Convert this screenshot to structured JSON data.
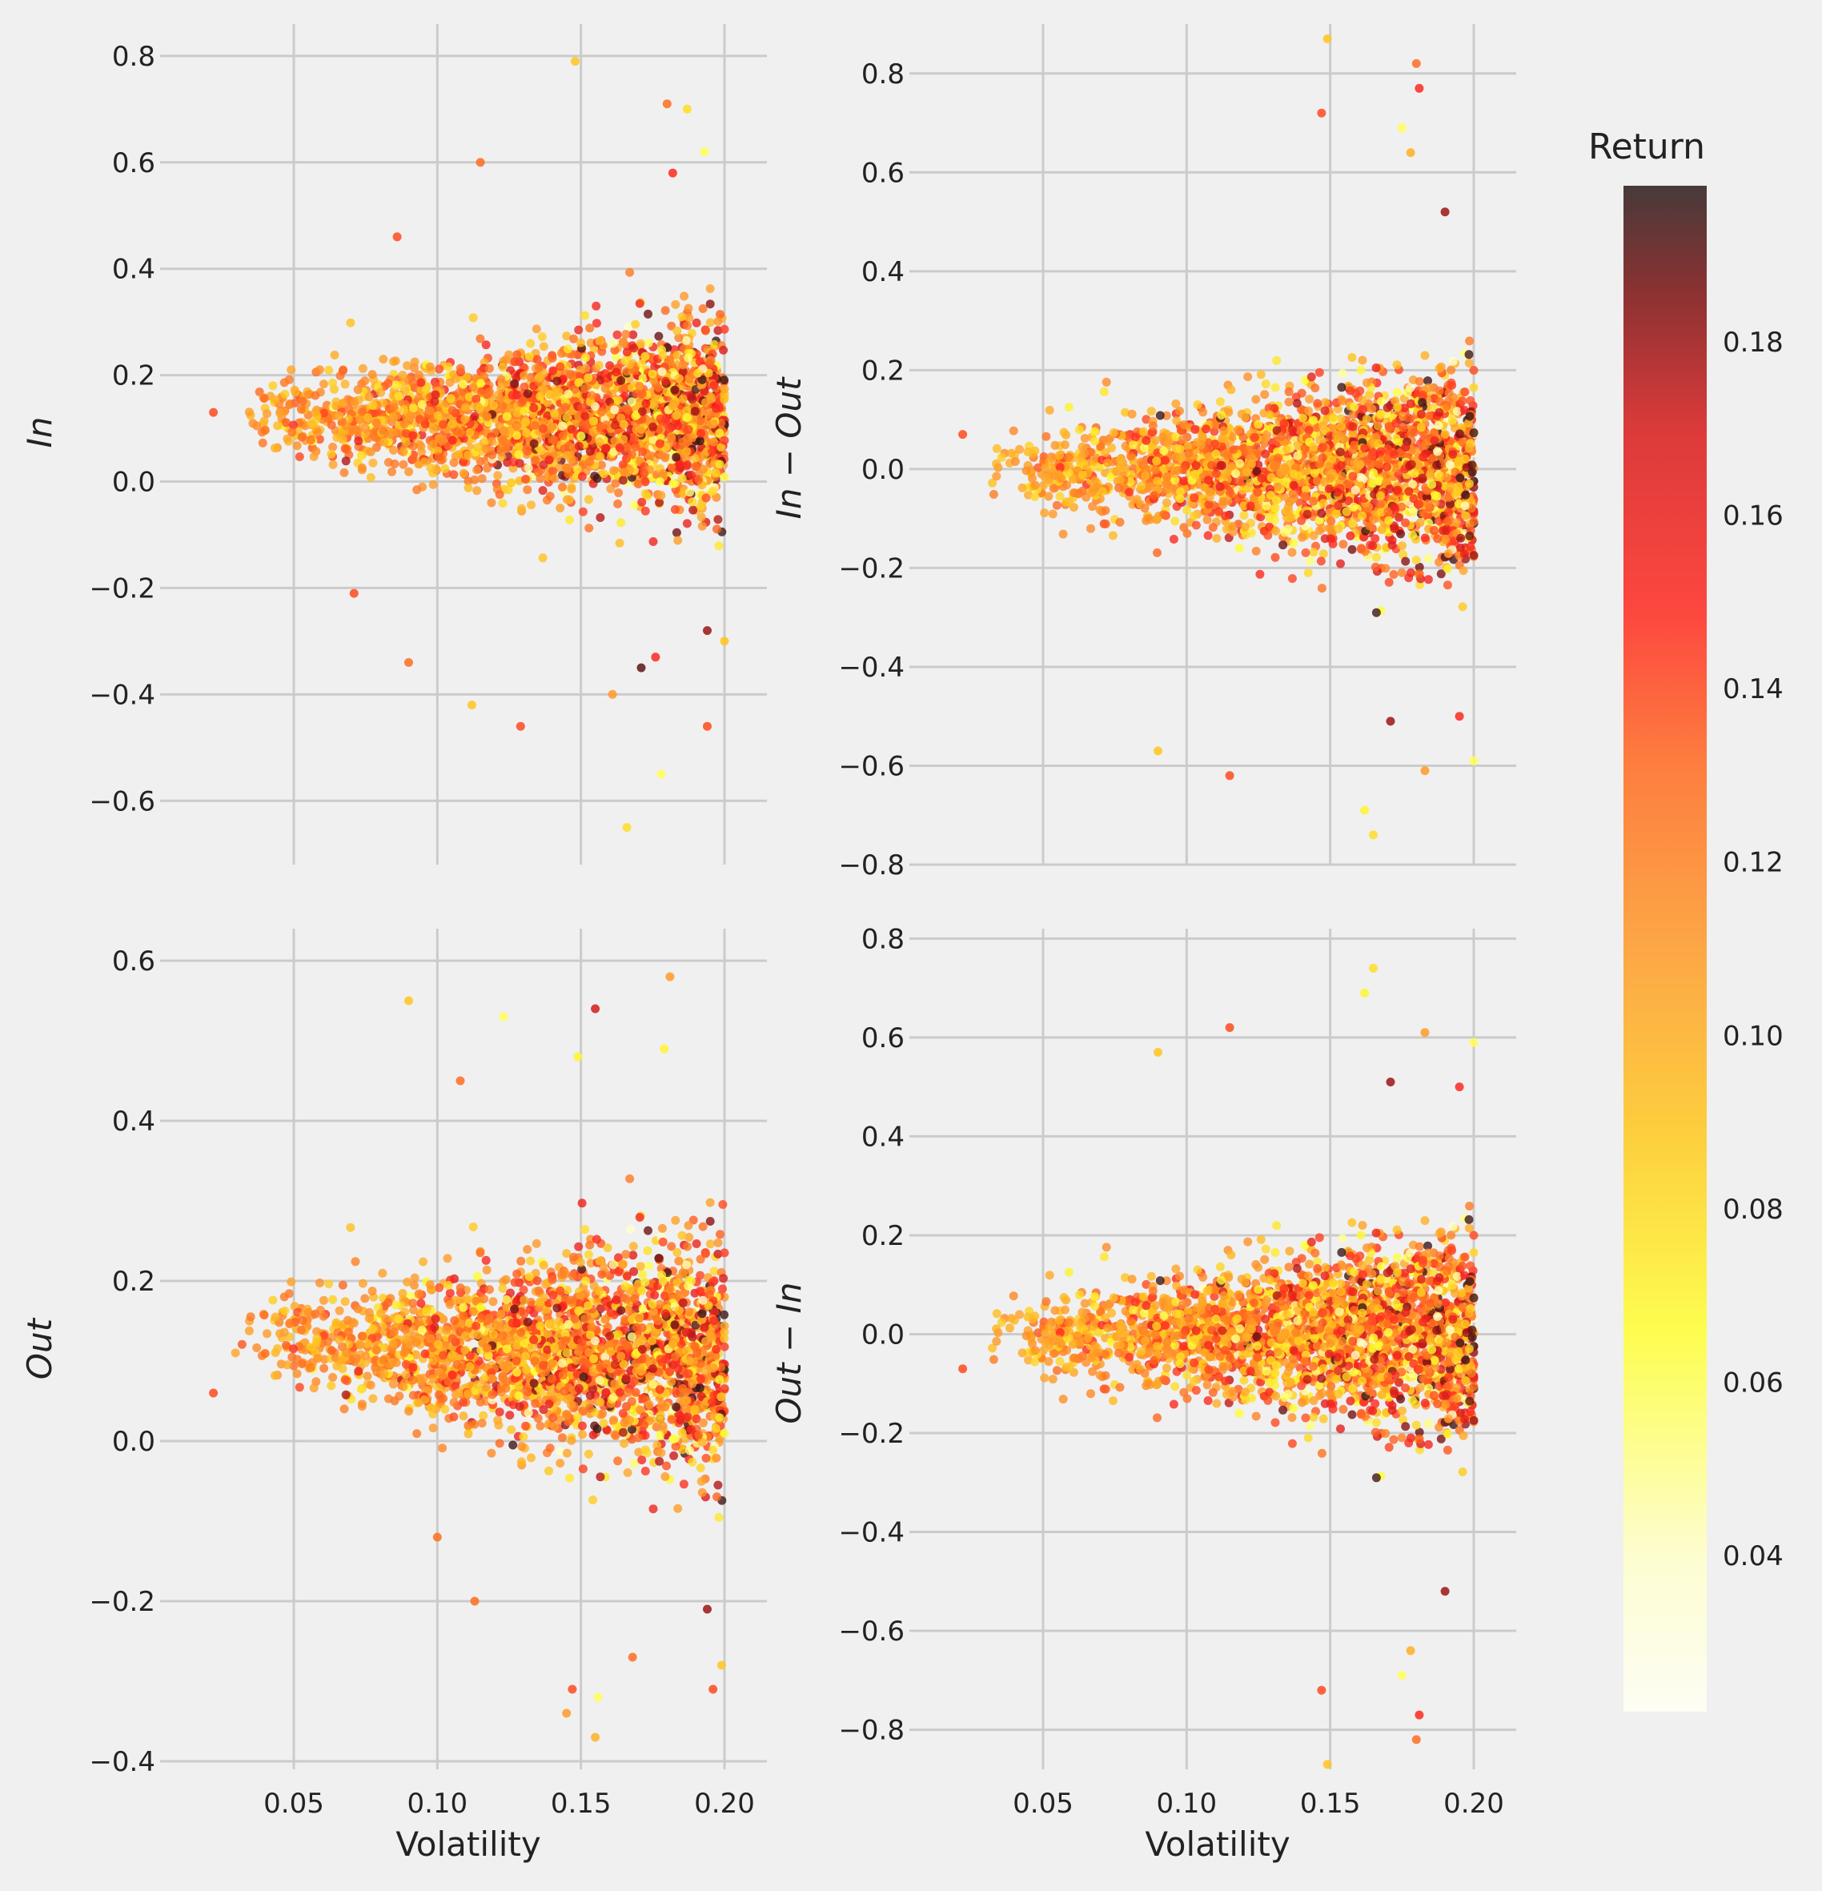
{
  "figure": {
    "colorbar_title": "Return",
    "colorbar_ticks": [
      "0.04",
      "0.06",
      "0.08",
      "0.10",
      "0.12",
      "0.14",
      "0.16",
      "0.18"
    ],
    "colorbar_range": [
      0.022,
      0.198
    ],
    "colormap": "hot_r",
    "background": "#f0f0f0",
    "grid_color": "#cbcbcb"
  },
  "chart_data": [
    {
      "type": "scatter",
      "panel": "top-left",
      "xlabel": "",
      "ylabel": "In",
      "xlim": [
        0.0,
        0.2
      ],
      "ylim": [
        -0.72,
        0.86
      ],
      "x_ticks": [
        "0.05",
        "0.10",
        "0.15",
        "0.20"
      ],
      "y_ticks": [
        "−0.6",
        "−0.4",
        "−0.2",
        "0.0",
        "0.2",
        "0.4",
        "0.6",
        "0.8"
      ],
      "y_tick_values": [
        -0.6,
        -0.4,
        -0.2,
        0.0,
        0.2,
        0.4,
        0.6,
        0.8
      ],
      "show_x_tick_labels": false,
      "cloud": {
        "x_min": 0.03,
        "x_max": 0.2,
        "y_center_at_min": 0.12,
        "y_center_at_max": 0.12,
        "spread_at_min": 0.05,
        "spread_at_max": 0.16
      },
      "points": [
        {
          "x": 0.022,
          "y": 0.13,
          "c": 0.14
        },
        {
          "x": 0.148,
          "y": 0.79,
          "c": 0.09
        },
        {
          "x": 0.18,
          "y": 0.71,
          "c": 0.13
        },
        {
          "x": 0.187,
          "y": 0.7,
          "c": 0.08
        },
        {
          "x": 0.115,
          "y": 0.6,
          "c": 0.13
        },
        {
          "x": 0.193,
          "y": 0.62,
          "c": 0.06
        },
        {
          "x": 0.182,
          "y": 0.58,
          "c": 0.15
        },
        {
          "x": 0.086,
          "y": 0.46,
          "c": 0.14
        },
        {
          "x": 0.112,
          "y": -0.42,
          "c": 0.09
        },
        {
          "x": 0.129,
          "y": -0.46,
          "c": 0.14
        },
        {
          "x": 0.194,
          "y": -0.46,
          "c": 0.14
        },
        {
          "x": 0.178,
          "y": -0.55,
          "c": 0.06
        },
        {
          "x": 0.166,
          "y": -0.65,
          "c": 0.08
        },
        {
          "x": 0.171,
          "y": -0.35,
          "c": 0.19
        },
        {
          "x": 0.194,
          "y": -0.28,
          "c": 0.18
        },
        {
          "x": 0.09,
          "y": -0.34,
          "c": 0.13
        },
        {
          "x": 0.161,
          "y": -0.4,
          "c": 0.11
        },
        {
          "x": 0.176,
          "y": -0.33,
          "c": 0.15
        },
        {
          "x": 0.2,
          "y": -0.3,
          "c": 0.09
        },
        {
          "x": 0.071,
          "y": -0.21,
          "c": 0.14
        }
      ]
    },
    {
      "type": "scatter",
      "panel": "top-right",
      "xlabel": "",
      "ylabel": "In − Out",
      "xlim": [
        0.0,
        0.2
      ],
      "ylim": [
        -0.8,
        0.9
      ],
      "x_ticks": [
        "0.05",
        "0.10",
        "0.15",
        "0.20"
      ],
      "y_ticks": [
        "−0.8",
        "−0.6",
        "−0.4",
        "−0.2",
        "0.0",
        "0.2",
        "0.4",
        "0.6",
        "0.8"
      ],
      "y_tick_values": [
        -0.8,
        -0.6,
        -0.4,
        -0.2,
        0.0,
        0.2,
        0.4,
        0.6,
        0.8
      ],
      "show_x_tick_labels": false,
      "cloud": {
        "x_min": 0.03,
        "x_max": 0.2,
        "y_center_at_min": 0.0,
        "y_center_at_max": 0.0,
        "spread_at_min": 0.06,
        "spread_at_max": 0.18
      },
      "points": [
        {
          "x": 0.022,
          "y": 0.07,
          "c": 0.14
        },
        {
          "x": 0.149,
          "y": 0.87,
          "c": 0.09
        },
        {
          "x": 0.18,
          "y": 0.82,
          "c": 0.13
        },
        {
          "x": 0.181,
          "y": 0.77,
          "c": 0.15
        },
        {
          "x": 0.147,
          "y": 0.72,
          "c": 0.14
        },
        {
          "x": 0.175,
          "y": 0.69,
          "c": 0.06
        },
        {
          "x": 0.178,
          "y": 0.64,
          "c": 0.1
        },
        {
          "x": 0.19,
          "y": 0.52,
          "c": 0.18
        },
        {
          "x": 0.165,
          "y": -0.74,
          "c": 0.08
        },
        {
          "x": 0.162,
          "y": -0.69,
          "c": 0.07
        },
        {
          "x": 0.115,
          "y": -0.62,
          "c": 0.14
        },
        {
          "x": 0.09,
          "y": -0.57,
          "c": 0.09
        },
        {
          "x": 0.2,
          "y": -0.59,
          "c": 0.06
        },
        {
          "x": 0.171,
          "y": -0.51,
          "c": 0.18
        },
        {
          "x": 0.183,
          "y": -0.61,
          "c": 0.11
        },
        {
          "x": 0.195,
          "y": -0.5,
          "c": 0.15
        }
      ]
    },
    {
      "type": "scatter",
      "panel": "bottom-left",
      "xlabel": "Volatility",
      "ylabel": "Out",
      "xlim": [
        0.0,
        0.2
      ],
      "ylim": [
        -0.41,
        0.64
      ],
      "x_ticks": [
        "0.05",
        "0.10",
        "0.15",
        "0.20"
      ],
      "y_ticks": [
        "−0.4",
        "−0.2",
        "0.0",
        "0.2",
        "0.4",
        "0.6"
      ],
      "y_tick_values": [
        -0.4,
        -0.2,
        0.0,
        0.2,
        0.4,
        0.6
      ],
      "show_x_tick_labels": true,
      "cloud": {
        "x_min": 0.03,
        "x_max": 0.2,
        "y_center_at_min": 0.13,
        "y_center_at_max": 0.1,
        "spread_at_min": 0.04,
        "spread_at_max": 0.13
      },
      "points": [
        {
          "x": 0.022,
          "y": 0.06,
          "c": 0.14
        },
        {
          "x": 0.181,
          "y": 0.58,
          "c": 0.11
        },
        {
          "x": 0.09,
          "y": 0.55,
          "c": 0.09
        },
        {
          "x": 0.155,
          "y": 0.54,
          "c": 0.17
        },
        {
          "x": 0.123,
          "y": 0.53,
          "c": 0.06
        },
        {
          "x": 0.149,
          "y": 0.48,
          "c": 0.07
        },
        {
          "x": 0.179,
          "y": 0.49,
          "c": 0.07
        },
        {
          "x": 0.108,
          "y": 0.45,
          "c": 0.13
        },
        {
          "x": 0.155,
          "y": -0.37,
          "c": 0.1
        },
        {
          "x": 0.145,
          "y": -0.34,
          "c": 0.11
        },
        {
          "x": 0.147,
          "y": -0.31,
          "c": 0.14
        },
        {
          "x": 0.156,
          "y": -0.32,
          "c": 0.06
        },
        {
          "x": 0.194,
          "y": -0.21,
          "c": 0.18
        },
        {
          "x": 0.199,
          "y": -0.28,
          "c": 0.09
        },
        {
          "x": 0.196,
          "y": -0.31,
          "c": 0.14
        },
        {
          "x": 0.168,
          "y": -0.27,
          "c": 0.13
        },
        {
          "x": 0.113,
          "y": -0.2,
          "c": 0.13
        },
        {
          "x": 0.1,
          "y": -0.12,
          "c": 0.13
        }
      ]
    },
    {
      "type": "scatter",
      "panel": "bottom-right",
      "xlabel": "Volatility",
      "ylabel": "Out − In",
      "xlim": [
        0.0,
        0.2
      ],
      "ylim": [
        -0.88,
        0.82
      ],
      "x_ticks": [
        "0.05",
        "0.10",
        "0.15",
        "0.20"
      ],
      "y_ticks": [
        "−0.8",
        "−0.6",
        "−0.4",
        "−0.2",
        "0.0",
        "0.2",
        "0.4",
        "0.6",
        "0.8"
      ],
      "y_tick_values": [
        -0.8,
        -0.6,
        -0.4,
        -0.2,
        0.0,
        0.2,
        0.4,
        0.6,
        0.8
      ],
      "show_x_tick_labels": true,
      "cloud": {
        "x_min": 0.03,
        "x_max": 0.2,
        "y_center_at_min": 0.0,
        "y_center_at_max": 0.0,
        "spread_at_min": 0.06,
        "spread_at_max": 0.18
      },
      "points": [
        {
          "x": 0.022,
          "y": -0.07,
          "c": 0.14
        },
        {
          "x": 0.149,
          "y": -0.87,
          "c": 0.09
        },
        {
          "x": 0.18,
          "y": -0.82,
          "c": 0.13
        },
        {
          "x": 0.181,
          "y": -0.77,
          "c": 0.15
        },
        {
          "x": 0.147,
          "y": -0.72,
          "c": 0.14
        },
        {
          "x": 0.175,
          "y": -0.69,
          "c": 0.06
        },
        {
          "x": 0.178,
          "y": -0.64,
          "c": 0.1
        },
        {
          "x": 0.19,
          "y": -0.52,
          "c": 0.18
        },
        {
          "x": 0.165,
          "y": 0.74,
          "c": 0.08
        },
        {
          "x": 0.162,
          "y": 0.69,
          "c": 0.07
        },
        {
          "x": 0.115,
          "y": 0.62,
          "c": 0.14
        },
        {
          "x": 0.09,
          "y": 0.57,
          "c": 0.09
        },
        {
          "x": 0.2,
          "y": 0.59,
          "c": 0.06
        },
        {
          "x": 0.171,
          "y": 0.51,
          "c": 0.18
        },
        {
          "x": 0.183,
          "y": 0.61,
          "c": 0.11
        },
        {
          "x": 0.195,
          "y": 0.5,
          "c": 0.15
        }
      ]
    }
  ]
}
